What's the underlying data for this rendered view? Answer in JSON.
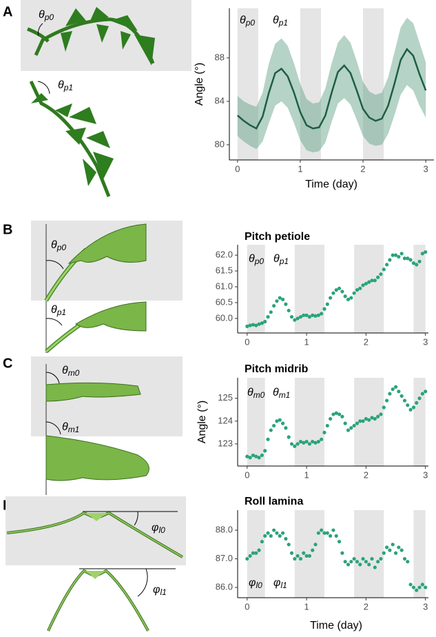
{
  "panels": {
    "letters": [
      "A",
      "B",
      "C",
      "D"
    ]
  },
  "illustrations": [
    {
      "symbol": "θ",
      "subscript": "p0"
    },
    {
      "symbol": "θ",
      "subscript": "p1"
    },
    {
      "symbol": "θ",
      "subscript": "p0"
    },
    {
      "symbol": "θ",
      "subscript": "p1"
    },
    {
      "symbol": "θ",
      "subscript": "m0"
    },
    {
      "symbol": "θ",
      "subscript": "m1"
    },
    {
      "symbol": "φ",
      "subscript": "l0"
    },
    {
      "symbol": "φ",
      "subscript": "l1"
    }
  ],
  "chart_data": [
    {
      "type": "line",
      "y_label": "Angle (°)",
      "x_label": "Time (day)",
      "annotations": [
        {
          "symbol": "θ",
          "subscript": "p0"
        },
        {
          "symbol": "θ",
          "subscript": "p1"
        }
      ],
      "xlim": [
        -0.13,
        3.13
      ],
      "ylim": [
        78.6,
        92.57
      ],
      "xticks": [
        0,
        1,
        2,
        3
      ],
      "yticks": [
        80,
        84,
        88
      ],
      "shaded_intervals": [
        [
          0,
          0.33
        ],
        [
          1,
          1.33
        ],
        [
          2,
          2.33
        ]
      ],
      "x": [
        0,
        0.1,
        0.2,
        0.3,
        0.4,
        0.5,
        0.6,
        0.7,
        0.8,
        0.9,
        1.0,
        1.1,
        1.2,
        1.3,
        1.4,
        1.5,
        1.6,
        1.7,
        1.8,
        1.9,
        2.0,
        2.1,
        2.2,
        2.3,
        2.4,
        2.5,
        2.6,
        2.7,
        2.8,
        2.9,
        3.0
      ],
      "series": [
        {
          "color": "#1d5e42",
          "band_color": "#5a9e80",
          "values": [
            82.7,
            82.2,
            81.8,
            81.5,
            82.6,
            84.8,
            86.6,
            87.0,
            86.3,
            84.8,
            83.0,
            81.8,
            81.5,
            81.6,
            82.7,
            84.8,
            86.7,
            87.3,
            86.6,
            85.0,
            83.3,
            82.5,
            82.2,
            82.4,
            83.6,
            85.6,
            87.8,
            88.8,
            88.2,
            86.5,
            85.0
          ],
          "lower": [
            80.8,
            80.3,
            79.9,
            79.6,
            80.3,
            82.0,
            83.6,
            84.0,
            83.4,
            82.0,
            80.4,
            79.5,
            79.3,
            79.4,
            80.2,
            82.1,
            83.8,
            84.3,
            83.7,
            82.3,
            80.8,
            80.1,
            79.9,
            80.0,
            81.0,
            82.7,
            84.6,
            85.5,
            85.0,
            83.6,
            82.5
          ],
          "upper": [
            84.5,
            84.0,
            83.7,
            83.5,
            84.8,
            87.5,
            89.3,
            89.8,
            89.1,
            87.5,
            85.6,
            84.2,
            83.8,
            83.9,
            85.2,
            87.5,
            89.4,
            90.1,
            89.4,
            87.7,
            85.8,
            84.9,
            84.6,
            84.8,
            86.2,
            88.5,
            90.8,
            91.7,
            91.2,
            89.4,
            87.6
          ]
        }
      ]
    },
    {
      "type": "scatter",
      "title": "Pitch petiole",
      "annotations": [
        {
          "symbol": "θ",
          "subscript": "p0"
        },
        {
          "symbol": "θ",
          "subscript": "p1"
        }
      ],
      "xlim": [
        -0.16,
        3.05
      ],
      "ylim": [
        59.54,
        62.33
      ],
      "xticks": [
        0,
        1,
        2,
        3
      ],
      "yticks": [
        {
          "value": 60,
          "label": "60.0"
        },
        60.5,
        {
          "value": 61,
          "label": "61.0"
        },
        61.5,
        {
          "value": 62,
          "label": "62.0"
        }
      ],
      "shaded_intervals": [
        [
          0,
          0.3
        ],
        [
          0.8,
          1.3
        ],
        [
          1.8,
          2.3
        ],
        [
          2.8,
          3.0
        ]
      ],
      "x": [
        0,
        0.05,
        0.1,
        0.15,
        0.2,
        0.25,
        0.3,
        0.35,
        0.4,
        0.45,
        0.5,
        0.55,
        0.6,
        0.65,
        0.7,
        0.75,
        0.8,
        0.85,
        0.9,
        0.95,
        1.0,
        1.05,
        1.1,
        1.15,
        1.2,
        1.25,
        1.3,
        1.35,
        1.4,
        1.45,
        1.5,
        1.55,
        1.6,
        1.65,
        1.7,
        1.75,
        1.8,
        1.85,
        1.9,
        1.95,
        2.0,
        2.05,
        2.1,
        2.15,
        2.2,
        2.25,
        2.3,
        2.35,
        2.4,
        2.45,
        2.5,
        2.55,
        2.6,
        2.65,
        2.7,
        2.75,
        2.8,
        2.85,
        2.9,
        2.95,
        3.0
      ],
      "series": [
        {
          "color": "#2aa37a",
          "values": [
            59.75,
            59.78,
            59.8,
            59.78,
            59.82,
            59.85,
            59.9,
            60.05,
            60.2,
            60.4,
            60.55,
            60.65,
            60.6,
            60.45,
            60.25,
            60.05,
            59.95,
            60.0,
            60.05,
            60.1,
            60.1,
            60.05,
            60.1,
            60.08,
            60.1,
            60.15,
            60.3,
            60.45,
            60.65,
            60.8,
            60.9,
            60.95,
            60.85,
            60.7,
            60.6,
            60.65,
            60.8,
            60.9,
            60.95,
            61.05,
            61.1,
            61.15,
            61.2,
            61.2,
            61.3,
            61.4,
            61.55,
            61.7,
            61.85,
            62.0,
            62.0,
            61.95,
            62.05,
            61.9,
            61.9,
            61.85,
            61.75,
            61.7,
            61.8,
            62.05,
            62.1
          ]
        }
      ]
    },
    {
      "type": "scatter",
      "title": "Pitch midrib",
      "y_label": "Angle (°)",
      "annotations": [
        {
          "symbol": "θ",
          "subscript": "m0"
        },
        {
          "symbol": "θ",
          "subscript": "m1"
        }
      ],
      "xlim": [
        -0.16,
        3.05
      ],
      "ylim": [
        122.03,
        125.9
      ],
      "xticks": [
        0,
        1,
        2,
        3
      ],
      "yticks": [
        123,
        124,
        125
      ],
      "shaded_intervals": [
        [
          0,
          0.3
        ],
        [
          0.8,
          1.3
        ],
        [
          1.8,
          2.3
        ],
        [
          2.8,
          3.0
        ]
      ],
      "x": [
        0,
        0.05,
        0.1,
        0.15,
        0.2,
        0.25,
        0.3,
        0.35,
        0.4,
        0.45,
        0.5,
        0.55,
        0.6,
        0.65,
        0.7,
        0.75,
        0.8,
        0.85,
        0.9,
        0.95,
        1.0,
        1.05,
        1.1,
        1.15,
        1.2,
        1.25,
        1.3,
        1.35,
        1.4,
        1.45,
        1.5,
        1.55,
        1.6,
        1.65,
        1.7,
        1.75,
        1.8,
        1.85,
        1.9,
        1.95,
        2.0,
        2.05,
        2.1,
        2.15,
        2.2,
        2.25,
        2.3,
        2.35,
        2.4,
        2.45,
        2.5,
        2.55,
        2.6,
        2.65,
        2.7,
        2.75,
        2.8,
        2.85,
        2.9,
        2.95,
        3.0
      ],
      "series": [
        {
          "color": "#2aa37a",
          "values": [
            122.45,
            122.4,
            122.5,
            122.45,
            122.4,
            122.5,
            122.7,
            123.2,
            123.6,
            123.8,
            124.0,
            124.05,
            123.9,
            123.7,
            123.3,
            123.0,
            122.9,
            123.0,
            123.1,
            123.05,
            123.1,
            123.0,
            123.1,
            123.05,
            123.1,
            123.2,
            123.5,
            123.8,
            124.1,
            124.3,
            124.35,
            124.3,
            124.2,
            123.9,
            123.6,
            123.7,
            123.8,
            123.9,
            124.0,
            124.0,
            124.1,
            124.05,
            124.15,
            124.1,
            124.2,
            124.3,
            124.6,
            124.9,
            125.2,
            125.4,
            125.5,
            125.3,
            125.1,
            124.9,
            124.7,
            124.5,
            124.6,
            124.8,
            125.0,
            125.2,
            125.3
          ]
        }
      ]
    },
    {
      "type": "scatter",
      "title": "Roll lamina",
      "x_label": "Time (day)",
      "annotations": [
        {
          "symbol": "φ",
          "subscript": "l0"
        },
        {
          "symbol": "φ",
          "subscript": "l1"
        }
      ],
      "xlim": [
        -0.16,
        3.05
      ],
      "ylim": [
        85.64,
        88.7
      ],
      "xticks": [
        0,
        1,
        2,
        3
      ],
      "yticks": [
        {
          "value": 86,
          "label": "86.0"
        },
        {
          "value": 87,
          "label": "87.0"
        },
        {
          "value": 88,
          "label": "88.0"
        }
      ],
      "shaded_intervals": [
        [
          0,
          0.3
        ],
        [
          0.8,
          1.3
        ],
        [
          1.8,
          2.3
        ],
        [
          2.8,
          3.0
        ]
      ],
      "x": [
        0,
        0.05,
        0.1,
        0.15,
        0.2,
        0.25,
        0.3,
        0.35,
        0.4,
        0.45,
        0.5,
        0.55,
        0.6,
        0.65,
        0.7,
        0.75,
        0.8,
        0.85,
        0.9,
        0.95,
        1.0,
        1.05,
        1.1,
        1.15,
        1.2,
        1.25,
        1.3,
        1.35,
        1.4,
        1.45,
        1.5,
        1.55,
        1.6,
        1.65,
        1.7,
        1.75,
        1.8,
        1.85,
        1.9,
        1.95,
        2.0,
        2.05,
        2.1,
        2.15,
        2.2,
        2.25,
        2.3,
        2.35,
        2.4,
        2.45,
        2.5,
        2.55,
        2.6,
        2.65,
        2.7,
        2.75,
        2.8,
        2.85,
        2.9,
        2.95,
        3.0
      ],
      "series": [
        {
          "color": "#2aa37a",
          "values": [
            87.0,
            87.1,
            87.2,
            87.2,
            87.3,
            87.6,
            87.8,
            87.9,
            87.8,
            88.0,
            87.9,
            87.8,
            87.9,
            87.7,
            87.5,
            87.2,
            87.0,
            87.1,
            87.0,
            87.2,
            87.1,
            87.1,
            87.3,
            87.5,
            87.9,
            88.0,
            87.9,
            87.9,
            87.8,
            88.0,
            87.8,
            87.6,
            87.2,
            86.9,
            86.8,
            86.9,
            87.0,
            86.9,
            86.8,
            87.0,
            86.9,
            86.8,
            87.0,
            86.7,
            86.9,
            87.0,
            87.2,
            87.4,
            87.3,
            87.5,
            87.2,
            87.4,
            87.3,
            87.0,
            86.9,
            86.1,
            86.0,
            85.9,
            86.0,
            86.1,
            86.0
          ]
        }
      ]
    }
  ]
}
